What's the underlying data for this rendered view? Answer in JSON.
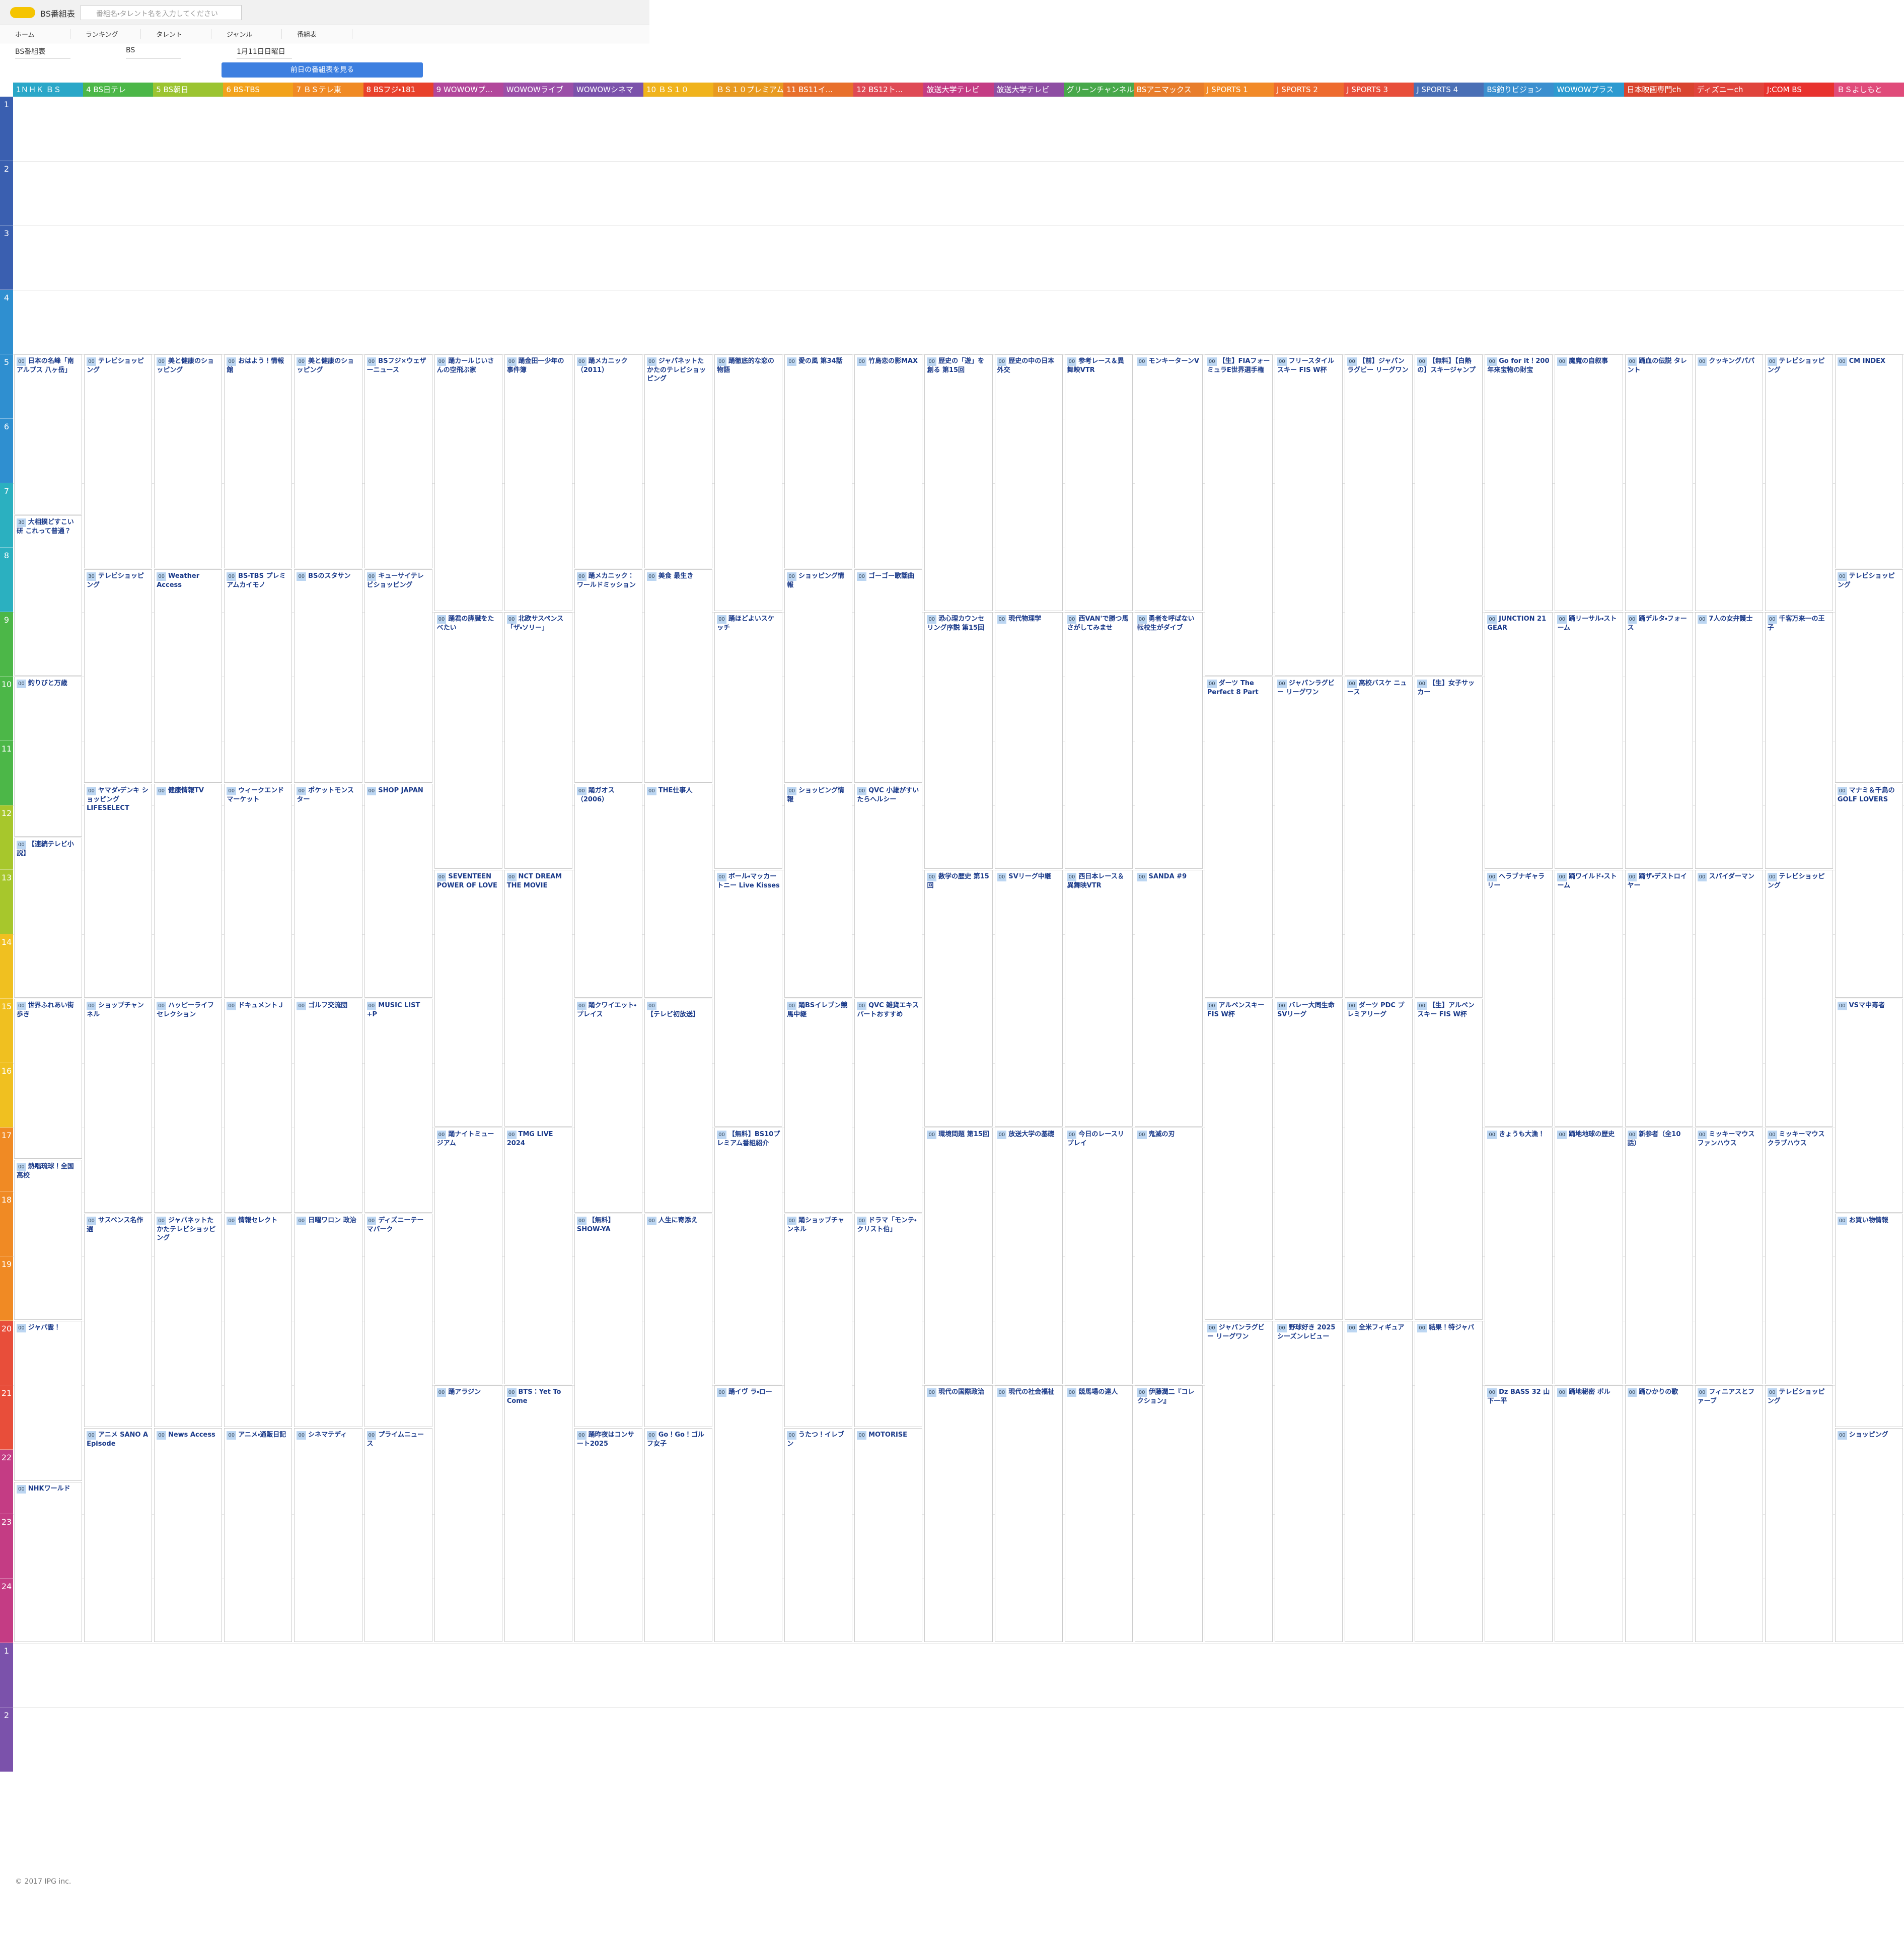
{
  "header": {
    "title": "BS番組表",
    "search_placeholder": "番組名・タレント名を入力してください"
  },
  "nav": [
    "ホーム",
    "ランキング",
    "タレント",
    "ジャンル",
    "番組表"
  ],
  "selectors": [
    "BS番組表",
    "BS",
    "1月11日日曜日"
  ],
  "button": "前日の番組表を見る",
  "hours": [
    1,
    2,
    3,
    4,
    5,
    6,
    7,
    8,
    9,
    10,
    11,
    12,
    13,
    14,
    15,
    16,
    17,
    18,
    19,
    20,
    21,
    22,
    23,
    24,
    1,
    2
  ],
  "channels": [
    {
      "name": "1ＮＨＫ ＢＳ",
      "color": "#2aa7c8",
      "programs": [
        {
          "min": "00",
          "title": "日本の名峰「南アルプス 八ヶ岳」"
        },
        {
          "min": "30",
          "title": "大相撲どすこい研 これって普通？"
        },
        {
          "min": "00",
          "title": "釣りびと万歳"
        },
        {
          "min": "00",
          "title": "【連続テレビ小説】"
        },
        {
          "min": "00",
          "title": "世界ふれあい街歩き"
        },
        {
          "min": "00",
          "title": "熱唱琉球！全国高校"
        },
        {
          "min": "00",
          "title": "ジャパ雲！"
        },
        {
          "min": "00",
          "title": "NHKワールド"
        }
      ]
    },
    {
      "name": "4 BS日テレ",
      "color": "#4cb748",
      "programs": [
        {
          "min": "00",
          "title": "テレビショッピング"
        },
        {
          "min": "30",
          "title": "テレビショッピング"
        },
        {
          "min": "00",
          "title": "ヤマダ・デンキ ショッピング LIFESELECT"
        },
        {
          "min": "00",
          "title": "ショップチャンネル"
        },
        {
          "min": "00",
          "title": "サスペンス名作選"
        },
        {
          "min": "00",
          "title": "アニメ SANO A Episode"
        }
      ]
    },
    {
      "name": "5 BS朝日",
      "color": "#9bc431",
      "programs": [
        {
          "min": "00",
          "title": "美と健康のショッピング"
        },
        {
          "min": "00",
          "title": "Weather Access"
        },
        {
          "min": "00",
          "title": "健康情報TV"
        },
        {
          "min": "00",
          "title": "ハッピーライフセレクション"
        },
        {
          "min": "00",
          "title": "ジャパネットたかたテレビショッピング"
        },
        {
          "min": "00",
          "title": "News Access"
        }
      ]
    },
    {
      "name": "6 BS-TBS",
      "color": "#f2a21b",
      "programs": [
        {
          "min": "00",
          "title": "おはよう！情報館"
        },
        {
          "min": "00",
          "title": "BS-TBS プレミアムカイモノ"
        },
        {
          "min": "00",
          "title": "ウィークエンドマーケット"
        },
        {
          "min": "00",
          "title": "ドキュメントＪ"
        },
        {
          "min": "00",
          "title": "情報セレクト"
        },
        {
          "min": "00",
          "title": "アニメ・通販日記"
        }
      ]
    },
    {
      "name": "7 ＢＳテレ東",
      "color": "#f08a24",
      "programs": [
        {
          "min": "00",
          "title": "美と健康のショッピング"
        },
        {
          "min": "00",
          "title": "BSのスタサン"
        },
        {
          "min": "00",
          "title": "ポケットモンスター"
        },
        {
          "min": "00",
          "title": "ゴルフ交流団"
        },
        {
          "min": "00",
          "title": "日曜ワロン 政治"
        },
        {
          "min": "00",
          "title": "シネマテディ"
        }
      ]
    },
    {
      "name": "8 BSフジ・181",
      "color": "#e8412b",
      "programs": [
        {
          "min": "00",
          "title": "BSフジ×ウェザーニュース"
        },
        {
          "min": "00",
          "title": "キューサイテレビショッピング"
        },
        {
          "min": "00",
          "title": "SHOP JAPAN"
        },
        {
          "min": "00",
          "title": "MUSIC LIST +P"
        },
        {
          "min": "00",
          "title": "ディズニーテーマパーク"
        },
        {
          "min": "00",
          "title": "プライムニュース"
        }
      ]
    },
    {
      "name": "9 WOWOWプ...",
      "color": "#b2479b",
      "programs": [
        {
          "min": "00",
          "title": "踊カールじいさんの空飛ぶ家"
        },
        {
          "min": "00",
          "title": "踊君の膵臓をたべたい"
        },
        {
          "min": "00",
          "title": "SEVENTEEN POWER OF LOVE"
        },
        {
          "min": "00",
          "title": "踊ナイトミュージアム"
        },
        {
          "min": "00",
          "title": "踊アラジン"
        }
      ]
    },
    {
      "name": "WOWOWライブ",
      "color": "#9b4fa8",
      "programs": [
        {
          "min": "00",
          "title": "踊金田一少年の事件簿"
        },
        {
          "min": "00",
          "title": "北欧サスペンス「ザ・ソリー」"
        },
        {
          "min": "00",
          "title": "NCT DREAM THE MOVIE"
        },
        {
          "min": "00",
          "title": "TMG LIVE 2024"
        },
        {
          "min": "00",
          "title": "BTS：Yet To Come"
        }
      ]
    },
    {
      "name": "WOWOWシネマ",
      "color": "#7b52ab",
      "programs": [
        {
          "min": "00",
          "title": "踊メカニック（2011）"
        },
        {
          "min": "00",
          "title": "踊メカニック：ワールドミッション"
        },
        {
          "min": "00",
          "title": "踊ガオス（2006）"
        },
        {
          "min": "00",
          "title": "踊クワイエット・プレイス"
        },
        {
          "min": "00",
          "title": "【無料】SHOW-YA"
        },
        {
          "min": "00",
          "title": "踊昨夜はコンサート2025"
        }
      ]
    },
    {
      "name": "10 ＢＳ１０",
      "color": "#f0b31c",
      "programs": [
        {
          "min": "00",
          "title": "ジャパネットたかたのテレビショッピング"
        },
        {
          "min": "00",
          "title": "美食 最生き"
        },
        {
          "min": "00",
          "title": "THE仕事人"
        },
        {
          "min": "00",
          "title": "【テレビ初放送】"
        },
        {
          "min": "00",
          "title": "人生に寄添え"
        },
        {
          "min": "00",
          "title": "Go！Go！ゴルフ女子"
        }
      ]
    },
    {
      "name": "ＢＳ１０プレミアム",
      "color": "#e89a20",
      "programs": [
        {
          "min": "00",
          "title": "踊徹底的な恋の物語"
        },
        {
          "min": "00",
          "title": "踊ほどよいスケッチ"
        },
        {
          "min": "00",
          "title": "ボール・マッカートニー Live Kisses"
        },
        {
          "min": "00",
          "title": "【無料】BS10プレミアム番組紹介"
        },
        {
          "min": "00",
          "title": "踊イヴ ラ・ロー"
        }
      ]
    },
    {
      "name": "11 BS11イ...",
      "color": "#e8702c",
      "programs": [
        {
          "min": "00",
          "title": "愛の風 第34話"
        },
        {
          "min": "00",
          "title": "ショッピング情報"
        },
        {
          "min": "00",
          "title": "ショッピング情報"
        },
        {
          "min": "00",
          "title": "踊BSイレブン競馬中継"
        },
        {
          "min": "00",
          "title": "踊ショップチャンネル"
        },
        {
          "min": "00",
          "title": "うたつ！イレブン"
        }
      ]
    },
    {
      "name": "12 BS12ト...",
      "color": "#df4a55",
      "programs": [
        {
          "min": "00",
          "title": "竹島恋の影MAX"
        },
        {
          "min": "00",
          "title": "ゴーゴー歌謡曲"
        },
        {
          "min": "00",
          "title": "QVC 小雄がすいたらへルシー"
        },
        {
          "min": "00",
          "title": "QVC 雑貨エキスパートおすすめ"
        },
        {
          "min": "00",
          "title": "ドラマ「モンテ・クリスト伯」"
        },
        {
          "min": "00",
          "title": "MOTORISE"
        }
      ]
    },
    {
      "name": "放送大学テレビ",
      "color": "#c43c84",
      "programs": [
        {
          "min": "00",
          "title": "歴史の「遊」を創る 第15回"
        },
        {
          "min": "00",
          "title": "恐心理カウンセリング序説 第15回"
        },
        {
          "min": "00",
          "title": "数学の歴史 第15回"
        },
        {
          "min": "00",
          "title": "環境問題 第15回"
        },
        {
          "min": "00",
          "title": "現代の国際政治"
        }
      ]
    },
    {
      "name": "放送大学テレビ",
      "color": "#8e4ea3",
      "programs": [
        {
          "min": "00",
          "title": "歴史の中の日本外交"
        },
        {
          "min": "00",
          "title": "現代物理学"
        },
        {
          "min": "00",
          "title": "SVリーグ中継"
        },
        {
          "min": "00",
          "title": "放送大学の基礎"
        },
        {
          "min": "00",
          "title": "現代の社会福祉"
        }
      ]
    },
    {
      "name": "グリーンチャンネル",
      "color": "#47a84a",
      "programs": [
        {
          "min": "00",
          "title": "参考レース＆異舞映VTR"
        },
        {
          "min": "00",
          "title": "西VAN'で勝つ馬さがしてみませ"
        },
        {
          "min": "00",
          "title": "西日本レース＆異舞映VTR"
        },
        {
          "min": "00",
          "title": "今日のレースリプレイ"
        },
        {
          "min": "00",
          "title": "競馬場の達人"
        }
      ]
    },
    {
      "name": "BSアニマックス",
      "color": "#e87d2b",
      "programs": [
        {
          "min": "00",
          "title": "モンキーターンV"
        },
        {
          "min": "00",
          "title": "勇者を呼ばない転校生がダイブ"
        },
        {
          "min": "00",
          "title": "SANDA #9"
        },
        {
          "min": "00",
          "title": "鬼滅の刃"
        },
        {
          "min": "00",
          "title": "伊藤潤二『コレクション』"
        }
      ]
    },
    {
      "name": "J SPORTS 1",
      "color": "#f28a28",
      "programs": [
        {
          "min": "00",
          "title": "【生】FIAフォーミュラE世界選手権"
        },
        {
          "min": "00",
          "title": "ダーツ The Perfect 8 Part"
        },
        {
          "min": "00",
          "title": "アルペンスキーFIS W杯"
        },
        {
          "min": "00",
          "title": "ジャパンラグビー リーグワン"
        }
      ]
    },
    {
      "name": "J SPORTS 2",
      "color": "#ee6b2e",
      "programs": [
        {
          "min": "00",
          "title": "フリースタイルスキー FIS W杯"
        },
        {
          "min": "00",
          "title": "ジャパンラグビー リーグワン"
        },
        {
          "min": "00",
          "title": "バレー大同生命SVリーグ"
        },
        {
          "min": "00",
          "title": "野球好き 2025シーズンレビュー"
        }
      ]
    },
    {
      "name": "J SPORTS 3",
      "color": "#e84e3a",
      "programs": [
        {
          "min": "00",
          "title": "【前】ジャパンラグビー リーグワン"
        },
        {
          "min": "00",
          "title": "高校バスケ ニュース"
        },
        {
          "min": "00",
          "title": "ダーツ PDC プレミアリーグ"
        },
        {
          "min": "00",
          "title": "全米フィギュア"
        }
      ]
    },
    {
      "name": "J SPORTS 4",
      "color": "#4a6fb5",
      "programs": [
        {
          "min": "00",
          "title": "【無料】【白熱の】スキージャンプ"
        },
        {
          "min": "00",
          "title": "【生】女子サッカー"
        },
        {
          "min": "00",
          "title": "【生】アルペンスキー FIS W杯"
        },
        {
          "min": "00",
          "title": "結果！特ジャパ"
        }
      ]
    },
    {
      "name": "BS釣りビジョン",
      "color": "#3b8fcf",
      "programs": [
        {
          "min": "00",
          "title": "Go for it！200年来宝物の財宝"
        },
        {
          "min": "00",
          "title": "JUNCTION 21 GEAR"
        },
        {
          "min": "00",
          "title": "ヘラブナギャラリー"
        },
        {
          "min": "00",
          "title": "きょうも大漁！"
        },
        {
          "min": "00",
          "title": "Dz BASS 32 山下一平"
        }
      ]
    },
    {
      "name": "WOWOWプラス",
      "color": "#2d9ad0",
      "programs": [
        {
          "min": "00",
          "title": "魔魔の自叙事"
        },
        {
          "min": "00",
          "title": "踊リーサル・ストーム"
        },
        {
          "min": "00",
          "title": "踊ワイルド・ストーム"
        },
        {
          "min": "00",
          "title": "踊地地球の歴史"
        },
        {
          "min": "00",
          "title": "踊地秘密 ボル"
        }
      ]
    },
    {
      "name": "日本映画専門ch",
      "color": "#d9442f",
      "programs": [
        {
          "min": "00",
          "title": "踊血の伝説 タレント"
        },
        {
          "min": "00",
          "title": "踊デルタ・フォース"
        },
        {
          "min": "00",
          "title": "踊ザ・デストロイヤー"
        },
        {
          "min": "00",
          "title": "新参者（全10話）"
        },
        {
          "min": "00",
          "title": "踊ひかりの歌"
        }
      ]
    },
    {
      "name": "ディズニーch",
      "color": "#e0443c",
      "programs": [
        {
          "min": "00",
          "title": "クッキングパパ"
        },
        {
          "min": "00",
          "title": "7人の女弁護士"
        },
        {
          "min": "00",
          "title": "スパイダーマン"
        },
        {
          "min": "00",
          "title": "ミッキーマウス ファンハウス"
        },
        {
          "min": "00",
          "title": "フィニアスとファーブ"
        }
      ]
    },
    {
      "name": "J:COM BS",
      "color": "#e8322e",
      "programs": [
        {
          "min": "00",
          "title": "テレビショッピング"
        },
        {
          "min": "00",
          "title": "千客万来一の王子"
        },
        {
          "min": "00",
          "title": "テレビショッピング"
        },
        {
          "min": "00",
          "title": "ミッキーマウス クラブハウス"
        },
        {
          "min": "00",
          "title": "テレビショッピング"
        }
      ]
    },
    {
      "name": "ＢＳよしもと",
      "color": "#e04b7a",
      "programs": [
        {
          "min": "00",
          "title": "CM INDEX"
        },
        {
          "min": "00",
          "title": "テレビショッピング"
        },
        {
          "min": "00",
          "title": "マナミ＆千鳥のGOLF LOVERS"
        },
        {
          "min": "00",
          "title": "VSマ中毒者"
        },
        {
          "min": "00",
          "title": "お買い物情報"
        },
        {
          "min": "00",
          "title": "ショッピング"
        }
      ]
    }
  ],
  "footer": "© 2017 IPG inc."
}
